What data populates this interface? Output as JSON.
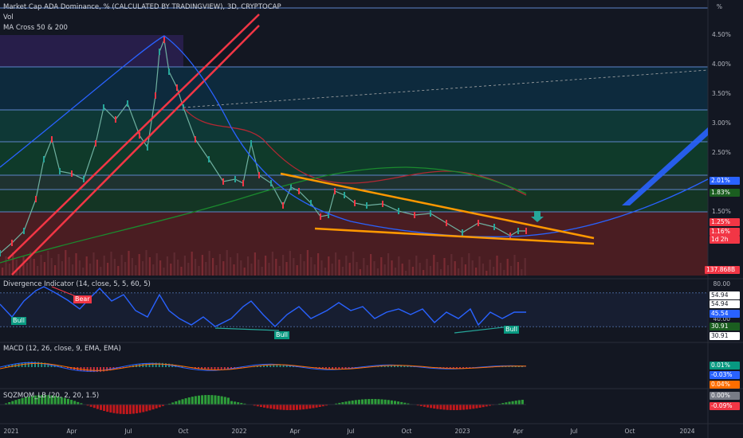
{
  "header": {
    "title": "Market Cap ADA Dominance, % (CALCULATED BY TRADINGVIEW), 3D, CRYPTOCAP",
    "vol": "Vol",
    "ma": "MA Cross 50 & 200"
  },
  "colors": {
    "bg": "#131722",
    "blue": "#2962ff",
    "orange": "#ff9800",
    "red": "#f23645",
    "green": "#089981",
    "ma_red": "#b22833",
    "ma_green": "#1b8a2e"
  },
  "axis": {
    "percent_label": "%",
    "price_ticks": [
      "4.50%",
      "4.00%",
      "3.50%",
      "3.00%",
      "2.50%",
      "2.00%",
      "1.50%"
    ],
    "x_ticks": [
      "2021",
      "Apr",
      "Jul",
      "Oct",
      "2022",
      "Apr",
      "Jul",
      "Oct",
      "2023",
      "Apr",
      "Jul",
      "Oct",
      "2024"
    ]
  },
  "price_badges": {
    "b1": "2.01%",
    "b2": "1.83%",
    "b3": "1.25%",
    "b4": "1.16%",
    "b5": "1d 2h",
    "b6": "137.868B"
  },
  "divergence": {
    "title": "Divergence Indicator (14, close, 5, 5, 60, 5)",
    "ticks": [
      "80.00",
      "40.00"
    ],
    "badges": [
      "54.94",
      "54.94",
      "45.54",
      "30.91",
      "30.91"
    ],
    "labels": {
      "bull": "Bull",
      "bear": "Bear"
    }
  },
  "macd": {
    "title": "MACD (12, 26, close, 9, EMA, EMA)",
    "badges": [
      "0.01%",
      "-0.03%",
      "0.04%"
    ]
  },
  "sqz": {
    "title": "SQZMOM_LB (20, 2, 20, 1.5)",
    "badges": [
      "0.00%",
      "-0.09%"
    ]
  },
  "chart_data": {
    "type": "line",
    "title": "Market Cap ADA Dominance, % (CALCULATED BY TRADINGVIEW), 3D, CRYPTOCAP",
    "ylabel": "%",
    "ylim": [
      0.6,
      5.0
    ],
    "x": [
      "2021-01",
      "2021-02",
      "2021-03",
      "2021-04",
      "2021-05",
      "2021-06",
      "2021-07",
      "2021-08",
      "2021-09",
      "2021-10",
      "2021-11",
      "2021-12",
      "2022-01",
      "2022-02",
      "2022-03",
      "2022-04",
      "2022-05",
      "2022-06",
      "2022-07",
      "2022-08",
      "2022-09",
      "2022-10",
      "2022-11",
      "2022-12",
      "2023-01",
      "2023-02",
      "2023-03",
      "2023-04"
    ],
    "series": [
      {
        "values": [
          0.9,
          1.4,
          2.8,
          3.0,
          3.2,
          3.3,
          2.6,
          3.6,
          4.5,
          3.4,
          2.8,
          2.3,
          2.0,
          2.5,
          2.0,
          1.5,
          1.5,
          1.8,
          1.8,
          1.7,
          1.6,
          1.5,
          1.4,
          1.2,
          1.3,
          1.3,
          1.15,
          1.25
        ]
      }
    ],
    "x_ticks": [
      "2021",
      "Apr",
      "Jul",
      "Oct",
      "2022",
      "Apr",
      "Jul",
      "Oct",
      "2023",
      "Apr",
      "Jul",
      "Oct",
      "2024"
    ],
    "y_ticks": [
      "4.50%",
      "4.00%",
      "3.50%",
      "3.00%",
      "2.50%",
      "2.00%",
      "1.50%"
    ],
    "grid": false
  }
}
